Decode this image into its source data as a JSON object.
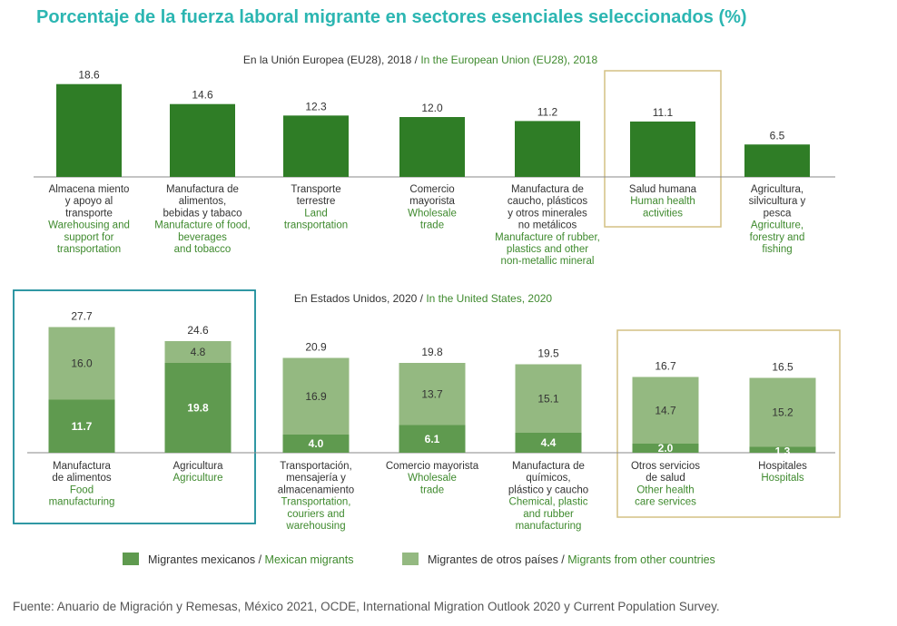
{
  "title": "Porcentaje de la fuerza laboral migrante en sectores esenciales seleccionados (%)",
  "source": "Fuente: Anuario de Migración y Remesas, México 2021, OCDE, International Migration Outlook 2020 y Current Population Survey.",
  "colors": {
    "title": "#2cb6b2",
    "eu_bar": "#2f7d26",
    "mexican": "#5f9a4f",
    "other": "#94b981",
    "english_text": "#3f8a2e",
    "highlight_gold": "#d4c184",
    "highlight_teal": "#1a8c9a"
  },
  "chart_data": [
    {
      "type": "bar",
      "title_es": "En la Unión Europea (EU28), 2018 / ",
      "title_en": "In the European Union (EU28), 2018",
      "categories": [
        {
          "es": [
            "Almacena miento",
            "y apoyo al",
            "transporte"
          ],
          "en": [
            "Warehousing and",
            "support for",
            "transportation"
          ]
        },
        {
          "es": [
            "Manufactura de",
            "alimentos,",
            "bebidas y tabaco"
          ],
          "en": [
            "Manufacture of food,",
            "beverages",
            "and tobacco"
          ]
        },
        {
          "es": [
            "Transporte",
            "terrestre"
          ],
          "en": [
            "Land",
            "transportation"
          ]
        },
        {
          "es": [
            "Comercio",
            "mayorista"
          ],
          "en": [
            "Wholesale",
            "trade"
          ]
        },
        {
          "es": [
            "Manufactura de",
            "caucho, plásticos",
            "y otros minerales",
            "no metálicos"
          ],
          "en": [
            "Manufacture of rubber,",
            "plastics and other",
            "non-metallic mineral"
          ]
        },
        {
          "es": [
            "Salud humana"
          ],
          "en": [
            "Human health",
            "activities"
          ]
        },
        {
          "es": [
            "Agricultura,",
            "silvicultura y",
            "pesca"
          ],
          "en": [
            "Agriculture,",
            "forestry and",
            "fishing"
          ]
        }
      ],
      "values": [
        18.6,
        14.6,
        12.3,
        12.0,
        11.2,
        11.1,
        6.5
      ],
      "value_labels": [
        "18.6",
        "14.6",
        "12.3",
        "12.0",
        "11.2",
        "11.1",
        "6.5"
      ],
      "highlighted_index": 5
    },
    {
      "type": "bar",
      "stacked": true,
      "title_es": "En Estados Unidos, 2020 / ",
      "title_en": "In the United States, 2020",
      "categories": [
        {
          "es": [
            "Manufactura",
            "de alimentos"
          ],
          "en": [
            "Food",
            "manufacturing"
          ]
        },
        {
          "es": [
            "Agricultura"
          ],
          "en": [
            "Agriculture"
          ]
        },
        {
          "es": [
            "Transportación,",
            "mensajería y",
            "almacenamiento"
          ],
          "en": [
            "Transportation,",
            "couriers and",
            "warehousing"
          ]
        },
        {
          "es": [
            "Comercio mayorista"
          ],
          "en": [
            "Wholesale",
            "trade"
          ]
        },
        {
          "es": [
            "Manufactura de",
            "químicos,",
            "plástico y caucho"
          ],
          "en": [
            "Chemical, plastic",
            "and rubber",
            "manufacturing"
          ]
        },
        {
          "es": [
            "Otros servicios",
            "de salud"
          ],
          "en": [
            "Other health",
            "care services"
          ]
        },
        {
          "es": [
            "Hospitales"
          ],
          "en": [
            "Hospitals"
          ]
        }
      ],
      "totals": [
        27.7,
        24.6,
        20.9,
        19.8,
        19.5,
        16.7,
        16.5
      ],
      "total_labels": [
        "27.7",
        "24.6",
        "20.9",
        "19.8",
        "19.5",
        "16.7",
        "16.5"
      ],
      "series": [
        {
          "name_es": "Migrantes mexicanos / ",
          "name_en": "Mexican migrants",
          "values": [
            11.7,
            19.8,
            4.0,
            6.1,
            4.4,
            2.0,
            1.3
          ],
          "labels": [
            "11.7",
            "19.8",
            "4.0",
            "6.1",
            "4.4",
            "2.0",
            "1.3"
          ]
        },
        {
          "name_es": "Migrantes de otros países / ",
          "name_en": "Migrants from other countries",
          "values": [
            16.0,
            4.8,
            16.9,
            13.7,
            15.1,
            14.7,
            15.2
          ],
          "labels": [
            "16.0",
            "4.8",
            "16.9",
            "13.7",
            "15.1",
            "14.7",
            "15.2"
          ]
        }
      ],
      "highlight_groups": [
        [
          0,
          1
        ],
        [
          5,
          6
        ]
      ]
    }
  ]
}
